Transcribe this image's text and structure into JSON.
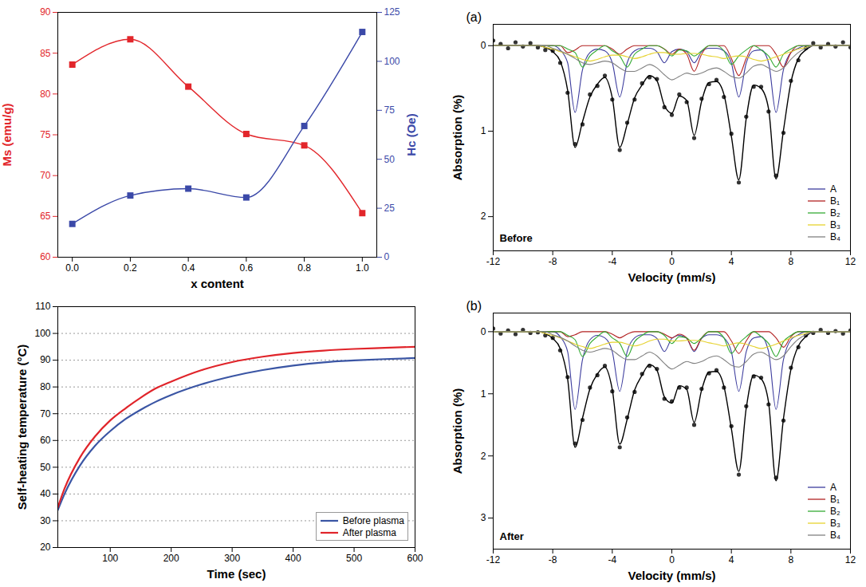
{
  "chart_data": [
    {
      "type": "line",
      "x_label": "x content",
      "y_label": "Ms (emu/g)",
      "y2_label": "Hc (Oe)",
      "x": [
        0,
        0.2,
        0.4,
        0.6,
        0.8,
        1.0
      ],
      "xlim": [
        -0.05,
        1.05
      ],
      "xticks": [
        {
          "value": 0,
          "label": "0.0"
        },
        {
          "value": 0.2,
          "label": "0.2"
        },
        {
          "value": 0.4,
          "label": "0.4"
        },
        {
          "value": 0.6,
          "label": "0.6"
        },
        {
          "value": 0.8,
          "label": "0.8"
        },
        {
          "value": 1.0,
          "label": "1.0"
        }
      ],
      "ylim": [
        60,
        90
      ],
      "yticks": [
        60,
        65,
        70,
        75,
        80,
        85,
        90
      ],
      "y2lim": [
        0,
        125
      ],
      "y2ticks": [
        0,
        25,
        50,
        75,
        100,
        125
      ],
      "series": [
        {
          "color": "#e2262b",
          "marker": "square",
          "values": [
            83.6,
            86.7,
            80.9,
            75.1,
            73.7,
            65.4
          ]
        },
        {
          "color": "#3b49a8",
          "marker": "square",
          "axis": "y2",
          "values": [
            17,
            31.5,
            35,
            30.5,
            67,
            115
          ]
        }
      ]
    },
    {
      "type": "line",
      "x_label": "Time (sec)",
      "y_label": "Self-heating temperature (°C)",
      "x": [
        14,
        25,
        50,
        75,
        100,
        125,
        150,
        175,
        200,
        250,
        300,
        350,
        400,
        450,
        500,
        550,
        600
      ],
      "xlim": [
        14,
        600
      ],
      "xticks": [
        100,
        200,
        300,
        400,
        500,
        600
      ],
      "ylim": [
        20,
        110
      ],
      "yticks": [
        20,
        30,
        40,
        50,
        60,
        70,
        80,
        90,
        100,
        110
      ],
      "grid": true,
      "legend": "bottom-right",
      "series": [
        {
          "name": "Before plasma",
          "color": "#3a55a4",
          "values": [
            34,
            40,
            50.5,
            58,
            63.5,
            68,
            71.5,
            74.5,
            77,
            81,
            84,
            86.3,
            88,
            89.2,
            89.9,
            90.4,
            90.8
          ]
        },
        {
          "name": "After plasma",
          "color": "#e0242a",
          "values": [
            35,
            42,
            53.5,
            61.5,
            67.5,
            72,
            76,
            79.5,
            82,
            86.3,
            89.3,
            91.3,
            92.7,
            93.6,
            94.2,
            94.6,
            95
          ]
        }
      ]
    },
    {
      "type": "line",
      "title": "(a)",
      "annotation": "Before",
      "x_label": "Velocity (mm/s)",
      "y_label": "Absorption (%)",
      "x": [
        -12,
        -11.5,
        -11,
        -10.5,
        -10,
        -9.5,
        -9,
        -8.5,
        -8,
        -7.5,
        -7,
        -6.5,
        -6,
        -5.5,
        -5,
        -4.5,
        -4,
        -3.5,
        -3,
        -2.5,
        -2,
        -1.5,
        -1,
        -0.5,
        0,
        0.5,
        1,
        1.5,
        2,
        2.5,
        3,
        3.5,
        4,
        4.5,
        5,
        5.5,
        6,
        6.5,
        7,
        7.5,
        8,
        8.5,
        9,
        9.5,
        10,
        10.5,
        11,
        11.5,
        12
      ],
      "xlim": [
        -12,
        12
      ],
      "xticks": [
        -12,
        -8,
        -4,
        0,
        4,
        8,
        12
      ],
      "ylim": [
        2.4,
        -0.25
      ],
      "yticks": [
        0,
        1,
        2
      ],
      "legend": "bottom-right",
      "series": [
        {
          "type": "scatter",
          "color": "#333333",
          "marker": "circle",
          "values": [
            -0.06,
            -0.02,
            0.03,
            -0.04,
            0.01,
            -0.03,
            0.02,
            0.05,
            0.06,
            0.2,
            0.55,
            1.15,
            0.92,
            0.57,
            0.47,
            0.35,
            0.63,
            1.22,
            0.9,
            0.63,
            0.44,
            0.37,
            0.39,
            0.72,
            0.81,
            0.57,
            0.66,
            1.08,
            0.62,
            0.45,
            0.4,
            0.6,
            1.03,
            1.6,
            0.83,
            0.48,
            0.48,
            0.77,
            1.52,
            1.02,
            0.41,
            0.17,
            0.03,
            -0.03,
            0.02,
            -0.02,
            0.01,
            -0.04,
            0.02
          ]
        },
        {
          "type": "line",
          "color": "#000000",
          "values": [
            0,
            0,
            0,
            0,
            0,
            0,
            0,
            0.02,
            0.07,
            0.18,
            0.52,
            1.19,
            0.89,
            0.6,
            0.45,
            0.37,
            0.61,
            1.19,
            0.92,
            0.61,
            0.46,
            0.35,
            0.41,
            0.7,
            0.79,
            0.59,
            0.64,
            1.05,
            0.65,
            0.43,
            0.42,
            0.57,
            1.06,
            1.57,
            0.85,
            0.46,
            0.5,
            0.74,
            1.56,
            0.99,
            0.43,
            0.15,
            0.05,
            0,
            0,
            0,
            0,
            0,
            0
          ]
        },
        {
          "name": "A",
          "type": "line",
          "color": "#3d3d9e",
          "values": [
            0,
            0,
            0,
            0,
            0,
            0,
            0,
            0,
            0,
            0.05,
            0.2,
            0.78,
            0.28,
            0.08,
            0.04,
            0.06,
            0.2,
            0.6,
            0.2,
            0.06,
            0.03,
            0.03,
            0.07,
            0.2,
            0.07,
            0.04,
            0.07,
            0.2,
            0.07,
            0.03,
            0.03,
            0.06,
            0.2,
            0.6,
            0.2,
            0.06,
            0.05,
            0.2,
            0.78,
            0.28,
            0.08,
            0.03,
            0,
            0,
            0,
            0,
            0,
            0,
            0
          ]
        },
        {
          "name": "B₁",
          "type": "line",
          "color": "#b22222",
          "values": [
            0,
            0,
            0,
            0,
            0,
            0,
            0,
            0,
            0,
            0,
            0.08,
            0.05,
            0,
            0,
            0,
            0,
            0.04,
            0.1,
            0.04,
            0,
            0,
            0,
            0,
            0.04,
            0.1,
            0.04,
            0.1,
            0.3,
            0.1,
            0,
            0,
            0,
            0.15,
            0.35,
            0.15,
            0,
            0,
            0,
            0.1,
            0.25,
            0.08,
            0,
            0,
            0,
            0,
            0,
            0,
            0,
            0
          ]
        },
        {
          "name": "B₂",
          "type": "line",
          "color": "#33aa33",
          "values": [
            0,
            0,
            0,
            0,
            0,
            0,
            0,
            0,
            0,
            0,
            0.04,
            0.08,
            0.25,
            0.12,
            0.05,
            0,
            0.06,
            0.12,
            0.25,
            0.1,
            0.04,
            0,
            0,
            0.04,
            0.12,
            0.05,
            0.06,
            0.12,
            0.06,
            0,
            0,
            0.06,
            0.22,
            0.12,
            0.05,
            0,
            0.05,
            0.12,
            0.25,
            0.1,
            0.04,
            0,
            0,
            0,
            0,
            0,
            0,
            0,
            0
          ]
        },
        {
          "name": "B₃",
          "type": "line",
          "color": "#e6d22e",
          "values": [
            0,
            0,
            0,
            0,
            0,
            0,
            0,
            0.02,
            0.04,
            0.07,
            0.1,
            0.13,
            0.16,
            0.18,
            0.16,
            0.13,
            0.11,
            0.11,
            0.13,
            0.15,
            0.13,
            0.1,
            0.08,
            0.08,
            0.1,
            0.1,
            0.09,
            0.09,
            0.1,
            0.12,
            0.13,
            0.15,
            0.13,
            0.12,
            0.13,
            0.16,
            0.18,
            0.16,
            0.13,
            0.1,
            0.07,
            0.04,
            0.02,
            0,
            0,
            0,
            0,
            0,
            0
          ]
        },
        {
          "name": "B₄",
          "type": "line",
          "color": "#808080",
          "values": [
            0,
            0,
            0,
            0,
            0,
            0,
            0,
            0,
            0.03,
            0.06,
            0.1,
            0.15,
            0.2,
            0.22,
            0.2,
            0.18,
            0.2,
            0.26,
            0.3,
            0.3,
            0.26,
            0.22,
            0.26,
            0.34,
            0.4,
            0.36,
            0.32,
            0.34,
            0.32,
            0.28,
            0.26,
            0.3,
            0.36,
            0.38,
            0.32,
            0.24,
            0.22,
            0.26,
            0.3,
            0.26,
            0.16,
            0.08,
            0.03,
            0,
            0,
            0,
            0,
            0,
            0
          ]
        }
      ]
    },
    {
      "type": "line",
      "title": "(b)",
      "annotation": "After",
      "x_label": "Velocity (mm/s)",
      "y_label": "Absorption (%)",
      "x": [
        -12,
        -11.5,
        -11,
        -10.5,
        -10,
        -9.5,
        -9,
        -8.5,
        -8,
        -7.5,
        -7,
        -6.5,
        -6,
        -5.5,
        -5,
        -4.5,
        -4,
        -3.5,
        -3,
        -2.5,
        -2,
        -1.5,
        -1,
        -0.5,
        0,
        0.5,
        1,
        1.5,
        2,
        2.5,
        3,
        3.5,
        4,
        4.5,
        5,
        5.5,
        6,
        6.5,
        7,
        7.5,
        8,
        8.5,
        9,
        9.5,
        10,
        10.5,
        11,
        11.5,
        12
      ],
      "xlim": [
        -12,
        12
      ],
      "xticks": [
        -12,
        -8,
        -4,
        0,
        4,
        8,
        12
      ],
      "ylim": [
        3.5,
        -0.3
      ],
      "yticks": [
        0,
        1,
        2,
        3
      ],
      "legend": "bottom-right",
      "series": [
        {
          "type": "scatter",
          "color": "#333333",
          "marker": "circle",
          "values": [
            -0.05,
            0.03,
            -0.02,
            0.04,
            -0.03,
            0.02,
            0.01,
            0.06,
            0.1,
            0.3,
            0.73,
            1.8,
            1.42,
            0.9,
            0.7,
            0.55,
            0.96,
            1.86,
            1.38,
            0.97,
            0.68,
            0.55,
            0.6,
            1.08,
            1.12,
            0.9,
            0.9,
            1.5,
            0.92,
            0.67,
            0.62,
            0.9,
            1.52,
            2.3,
            1.2,
            0.72,
            0.74,
            1.17,
            2.35,
            1.43,
            0.58,
            0.25,
            0.06,
            0.02,
            -0.03,
            0.02,
            -0.01,
            0.03,
            -0.02
          ]
        },
        {
          "type": "line",
          "color": "#000000",
          "values": [
            0,
            0,
            0,
            0,
            0,
            0,
            0,
            0.03,
            0.11,
            0.27,
            0.76,
            1.86,
            1.39,
            0.92,
            0.68,
            0.57,
            0.93,
            1.81,
            1.41,
            0.94,
            0.7,
            0.53,
            0.62,
            1.05,
            1.15,
            0.87,
            0.93,
            1.46,
            0.94,
            0.65,
            0.64,
            0.88,
            1.56,
            2.25,
            1.23,
            0.7,
            0.76,
            1.14,
            2.4,
            1.4,
            0.61,
            0.23,
            0.08,
            0,
            0,
            0,
            0,
            0,
            0
          ]
        },
        {
          "name": "A",
          "type": "line",
          "color": "#3d3d9e",
          "values": [
            0,
            0,
            0,
            0,
            0,
            0,
            0,
            0,
            0,
            0.08,
            0.32,
            1.25,
            0.45,
            0.13,
            0.06,
            0.1,
            0.32,
            0.96,
            0.32,
            0.1,
            0.05,
            0.05,
            0.11,
            0.32,
            0.11,
            0.06,
            0.11,
            0.32,
            0.11,
            0.05,
            0.05,
            0.1,
            0.32,
            0.96,
            0.32,
            0.1,
            0.08,
            0.32,
            1.25,
            0.45,
            0.13,
            0.05,
            0,
            0,
            0,
            0,
            0,
            0,
            0
          ]
        },
        {
          "name": "B₁",
          "type": "line",
          "color": "#b22222",
          "values": [
            0,
            0,
            0,
            0,
            0,
            0,
            0,
            0,
            0,
            0,
            0.08,
            0.05,
            0,
            0,
            0,
            0,
            0.04,
            0.1,
            0.04,
            0,
            0,
            0,
            0,
            0.04,
            0.1,
            0.04,
            0.1,
            0.3,
            0.1,
            0,
            0,
            0,
            0.15,
            0.35,
            0.15,
            0,
            0,
            0,
            0.1,
            0.25,
            0.08,
            0,
            0,
            0,
            0,
            0,
            0,
            0,
            0
          ]
        },
        {
          "name": "B₂",
          "type": "line",
          "color": "#33aa33",
          "values": [
            0,
            0,
            0,
            0,
            0,
            0,
            0,
            0,
            0,
            0,
            0.06,
            0.13,
            0.4,
            0.19,
            0.08,
            0,
            0.1,
            0.19,
            0.4,
            0.16,
            0.06,
            0,
            0,
            0.06,
            0.19,
            0.08,
            0.1,
            0.19,
            0.1,
            0,
            0,
            0.1,
            0.35,
            0.19,
            0.08,
            0,
            0.08,
            0.19,
            0.4,
            0.16,
            0.06,
            0,
            0,
            0,
            0,
            0,
            0,
            0,
            0
          ]
        },
        {
          "name": "B₃",
          "type": "line",
          "color": "#e6d22e",
          "values": [
            0,
            0,
            0,
            0,
            0,
            0,
            0,
            0.03,
            0.06,
            0.1,
            0.15,
            0.2,
            0.24,
            0.27,
            0.24,
            0.2,
            0.17,
            0.17,
            0.2,
            0.23,
            0.2,
            0.15,
            0.12,
            0.12,
            0.15,
            0.15,
            0.14,
            0.14,
            0.15,
            0.18,
            0.2,
            0.23,
            0.2,
            0.18,
            0.2,
            0.24,
            0.27,
            0.24,
            0.2,
            0.15,
            0.1,
            0.06,
            0.03,
            0,
            0,
            0,
            0,
            0,
            0
          ]
        },
        {
          "name": "B₄",
          "type": "line",
          "color": "#808080",
          "values": [
            0,
            0,
            0,
            0,
            0,
            0,
            0,
            0,
            0.05,
            0.09,
            0.15,
            0.23,
            0.3,
            0.33,
            0.3,
            0.27,
            0.3,
            0.39,
            0.45,
            0.45,
            0.39,
            0.33,
            0.39,
            0.51,
            0.6,
            0.54,
            0.48,
            0.51,
            0.48,
            0.42,
            0.39,
            0.45,
            0.54,
            0.57,
            0.48,
            0.36,
            0.33,
            0.39,
            0.45,
            0.39,
            0.24,
            0.12,
            0.05,
            0,
            0,
            0,
            0,
            0,
            0
          ]
        }
      ]
    }
  ]
}
